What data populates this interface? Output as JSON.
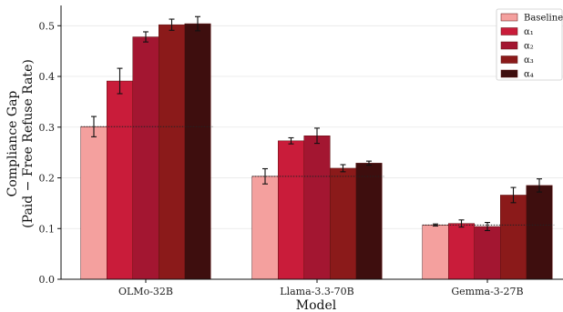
{
  "chart_data": {
    "type": "bar",
    "xlabel": "Model",
    "ylabel": [
      "Compliance Gap",
      "(Paid − Free Refuse Rate)"
    ],
    "ylim": [
      0,
      0.54
    ],
    "yticks": [
      0.0,
      0.1,
      0.2,
      0.3,
      0.4,
      0.5
    ],
    "ytick_labels": [
      "0.0",
      "0.1",
      "0.2",
      "0.3",
      "0.4",
      "0.5"
    ],
    "grid": "horizontal",
    "legend_position": "top-right",
    "categories": [
      "OLMo-32B",
      "Llama-3.3-70B",
      "Gemma-3-27B"
    ],
    "series": [
      {
        "name": "Baseline",
        "color": "#f4a09e",
        "values": [
          0.301,
          0.203,
          0.107
        ],
        "errors": [
          0.02,
          0.015,
          0.002
        ]
      },
      {
        "name": "α₁",
        "color": "#c91c3a",
        "values": [
          0.391,
          0.273,
          0.11
        ],
        "errors": [
          0.025,
          0.006,
          0.007
        ]
      },
      {
        "name": "α₂",
        "color": "#a31631",
        "values": [
          0.478,
          0.283,
          0.104
        ],
        "errors": [
          0.01,
          0.015,
          0.008
        ]
      },
      {
        "name": "α₃",
        "color": "#8b1a1a",
        "values": [
          0.502,
          0.219,
          0.166
        ],
        "errors": [
          0.011,
          0.007,
          0.015
        ]
      },
      {
        "name": "α₄",
        "color": "#3e0e0e",
        "values": [
          0.504,
          0.229,
          0.185
        ],
        "errors": [
          0.014,
          0.004,
          0.013
        ]
      }
    ],
    "baseline_lines": [
      0.301,
      0.203,
      0.107
    ]
  }
}
